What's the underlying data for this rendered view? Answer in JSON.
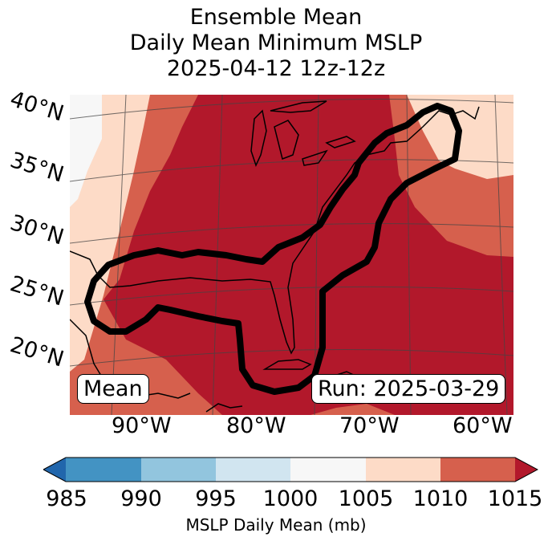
{
  "title": {
    "line1": "Ensemble Mean",
    "line2": "Daily Mean Minimum MSLP",
    "line3": "2025-04-12 12z-12z"
  },
  "map": {
    "lat_labels": [
      "40°N",
      "35°N",
      "30°N",
      "25°N",
      "20°N"
    ],
    "lon_labels": [
      "90°W",
      "80°W",
      "70°W",
      "60°W"
    ],
    "left_box": "Mean",
    "right_box": "Run: 2025-03-29"
  },
  "colorbar": {
    "label": "MSLP Daily Mean (mb)",
    "ticks": [
      "985",
      "990",
      "995",
      "1000",
      "1005",
      "1010",
      "1015"
    ],
    "colors": [
      "#2166ac",
      "#4393c3",
      "#92c5de",
      "#d1e5f0",
      "#f7f7f7",
      "#fddbc7",
      "#d6604d",
      "#b2182b"
    ]
  }
}
